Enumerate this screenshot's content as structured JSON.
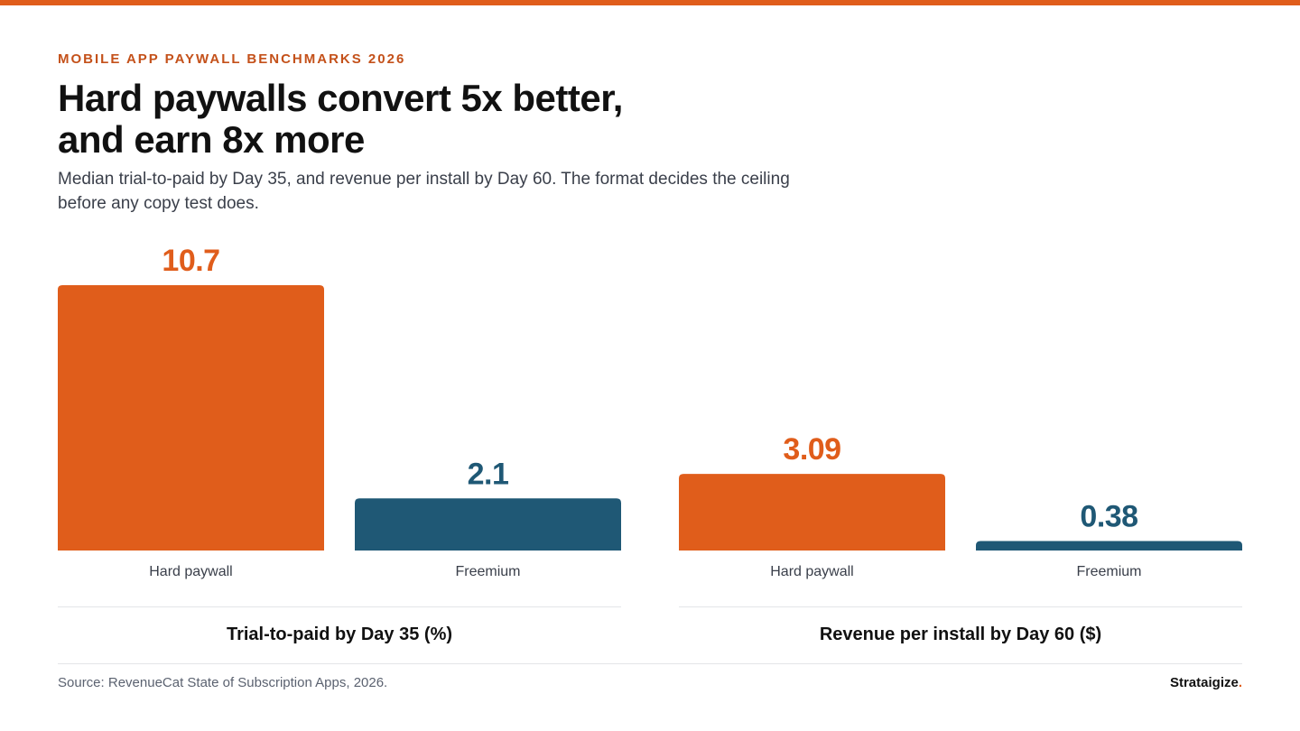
{
  "header": {
    "eyebrow": "MOBILE APP PAYWALL BENCHMARKS 2026",
    "headline_line1": "Hard paywalls convert 5x better,",
    "headline_line2": "and earn 8x more",
    "subtitle_line1": "Median trial-to-paid by Day 35, and revenue per install by Day 60. The format decides the ceiling",
    "subtitle_line2": "before any copy test does."
  },
  "colors": {
    "accent": "#e05d1b",
    "hard_paywall": "#e05d1b",
    "freemium": "#1f5875",
    "text_dark": "#111111",
    "text_muted": "#5b6270"
  },
  "chart_data": [
    {
      "type": "bar",
      "categories": [
        "Hard paywall",
        "Freemium"
      ],
      "values": [
        10.7,
        2.1
      ],
      "value_labels": [
        "10.7",
        "2.1"
      ],
      "title": "Trial-to-paid by Day 35 (%)",
      "ylim": [
        0,
        10.7
      ]
    },
    {
      "type": "bar",
      "categories": [
        "Hard paywall",
        "Freemium"
      ],
      "values": [
        3.09,
        0.38
      ],
      "value_labels": [
        "3.09",
        "0.38"
      ],
      "title": "Revenue per install by Day 60 ($)",
      "ylim": [
        0,
        10.7
      ]
    }
  ],
  "footer": {
    "source": "Source: RevenueCat State of Subscription Apps, 2026.",
    "brand": "Strataigize",
    "brand_dot": "."
  }
}
